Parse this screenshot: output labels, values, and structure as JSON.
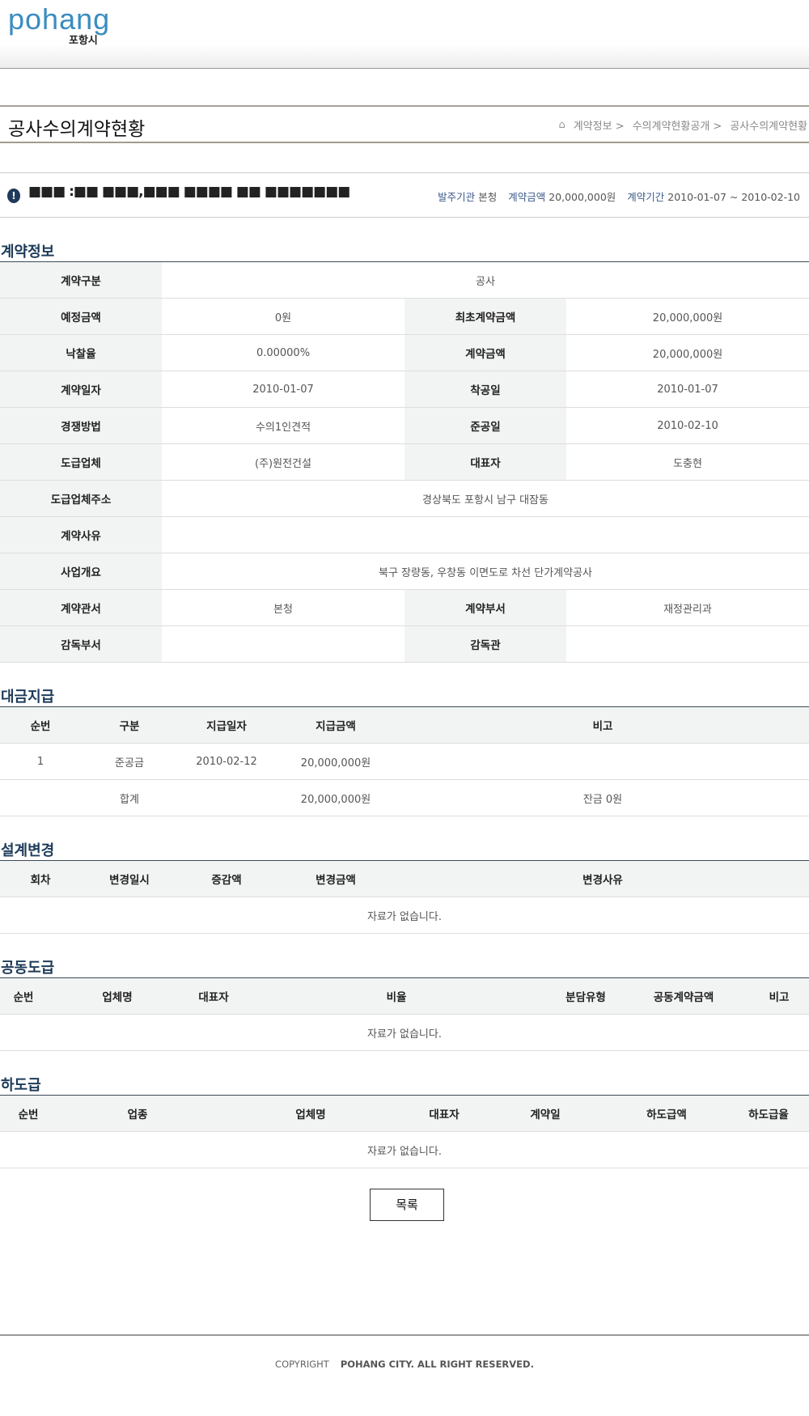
{
  "header": {
    "logo_en": "pohang",
    "logo_ko": "포항시"
  },
  "title": "공사수의계약현황",
  "breadcrumb": [
    "계약정보 >",
    "수의계약현황공개 >",
    "공사수의계약현황"
  ],
  "notice": {
    "masked_title": "■■■ :■■ ■■■,■■■ ■■■■ ■■ ■■■■■■■",
    "org_label": "발주기관",
    "org": "본청",
    "amount_label": "계약금액",
    "amount": "20,000,000원",
    "period_label": "계약기간",
    "period": "2010-01-07 ~ 2010-02-10"
  },
  "contract_info": {
    "heading": "계약정보",
    "rows": [
      [
        {
          "k": "계약구분",
          "v": "공사"
        }
      ],
      [
        {
          "k": "예정금액",
          "v": "0원"
        },
        {
          "k": "최초계약금액",
          "v": "20,000,000원"
        }
      ],
      [
        {
          "k": "낙찰율",
          "v": "0.00000%"
        },
        {
          "k": "계약금액",
          "v": "20,000,000원"
        }
      ],
      [
        {
          "k": "계약일자",
          "v": "2010-01-07"
        },
        {
          "k": "착공일",
          "v": "2010-01-07"
        }
      ],
      [
        {
          "k": "경쟁방법",
          "v": "수의1인견적"
        },
        {
          "k": "준공일",
          "v": "2010-02-10"
        }
      ],
      [
        {
          "k": "도급업체",
          "v": "(주)원전건설"
        },
        {
          "k": "대표자",
          "v": "도충현"
        }
      ],
      [
        {
          "k": "도급업체주소",
          "v": "경상북도 포항시 남구 대잠동"
        }
      ],
      [
        {
          "k": "계약사유",
          "v": ""
        }
      ],
      [
        {
          "k": "사업개요",
          "v": "북구 장량동, 우창동 이면도로 차선 단가계약공사"
        }
      ],
      [
        {
          "k": "계약관서",
          "v": "본청"
        },
        {
          "k": "계약부서",
          "v": "재정관리과"
        }
      ],
      [
        {
          "k": "감독부서",
          "v": ""
        },
        {
          "k": "감독관",
          "v": ""
        }
      ]
    ]
  },
  "payment": {
    "heading": "대금지급",
    "columns": [
      "순번",
      "구분",
      "지급일자",
      "지급금액",
      "비고"
    ],
    "rows": [
      [
        "1",
        "준공금",
        "2010-02-12",
        "20,000,000원",
        ""
      ]
    ],
    "total": {
      "label": "합계",
      "amount": "20,000,000원",
      "note": "잔금 0원"
    }
  },
  "design_change": {
    "heading": "설계변경",
    "columns": [
      "회차",
      "변경일시",
      "증감액",
      "변경금액",
      "변경사유"
    ],
    "empty": "자료가 없습니다."
  },
  "joint": {
    "heading": "공동도급",
    "columns": [
      "순번",
      "업체명",
      "대표자",
      "비율",
      "분담유형",
      "공동계약금액",
      "비고"
    ],
    "empty": "자료가 없습니다."
  },
  "subcontract": {
    "heading": "하도급",
    "columns": [
      "순번",
      "업종",
      "업체명",
      "대표자",
      "계약일",
      "하도급액",
      "하도급율"
    ],
    "empty": "자료가 없습니다."
  },
  "list_button": "목록",
  "footer": {
    "copyright": "COPYRIGHT",
    "owner": "POHANG CITY. ALL RIGHT RESERVED."
  }
}
